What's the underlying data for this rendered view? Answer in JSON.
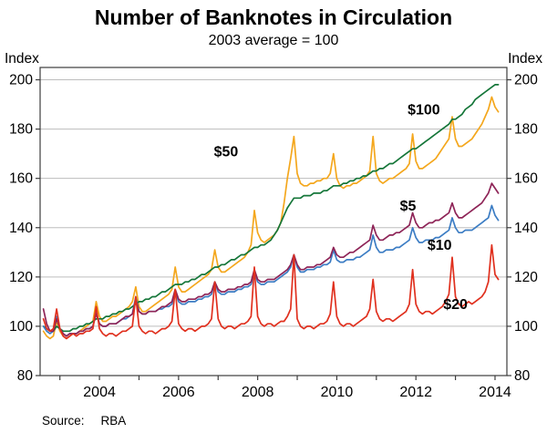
{
  "chart_data": {
    "type": "line",
    "title": "Number of Banknotes in Circulation",
    "subtitle": "2003 average = 100",
    "ylabel_left": "Index",
    "ylabel_right": "Index",
    "source_label": "Source:",
    "source_value": "RBA",
    "xlim": [
      2002.5,
      2014.3
    ],
    "ylim": [
      80,
      205
    ],
    "yticks": [
      80,
      100,
      120,
      140,
      160,
      180,
      200
    ],
    "grid_values": [
      100,
      120,
      140,
      160,
      180,
      200
    ],
    "xticks": [
      2003,
      2004,
      2005,
      2006,
      2007,
      2008,
      2009,
      2010,
      2011,
      2012,
      2013,
      2014
    ],
    "xticks_labeled": [
      2004,
      2006,
      2008,
      2010,
      2012,
      2014
    ],
    "x_start": 2002.5833,
    "x_step": 0.0833333,
    "series": [
      {
        "name": "$50",
        "color": "#f4a71d",
        "label_x": 2007.2,
        "label_y": 169,
        "values": [
          98,
          96,
          95,
          96,
          102,
          98,
          96,
          95,
          96,
          97,
          97,
          98,
          99,
          100,
          101,
          102,
          110,
          104,
          102,
          102,
          103,
          104,
          104,
          105,
          106,
          107,
          108,
          110,
          116,
          108,
          106,
          106,
          107,
          108,
          109,
          110,
          111,
          112,
          113,
          115,
          124,
          116,
          114,
          114,
          115,
          116,
          117,
          118,
          119,
          120,
          121,
          123,
          131,
          124,
          122,
          122,
          123,
          124,
          125,
          126,
          127,
          128,
          130,
          133,
          147,
          138,
          135,
          134,
          135,
          136,
          137,
          139,
          142,
          150,
          160,
          168,
          177,
          162,
          158,
          157,
          157,
          158,
          158,
          159,
          159,
          160,
          160,
          162,
          170,
          160,
          157,
          156,
          157,
          157,
          158,
          158,
          159,
          160,
          161,
          163,
          177,
          162,
          159,
          158,
          159,
          160,
          160,
          161,
          162,
          163,
          164,
          166,
          178,
          167,
          164,
          164,
          165,
          166,
          167,
          168,
          170,
          172,
          174,
          176,
          185,
          176,
          173,
          173,
          174,
          175,
          176,
          178,
          180,
          182,
          185,
          188,
          193,
          189,
          187
        ]
      },
      {
        "name": "$100",
        "color": "#157639",
        "label_x": 2012.2,
        "label_y": 186,
        "values": [
          100,
          99,
          98,
          98,
          100,
          99,
          98,
          98,
          98,
          99,
          99,
          100,
          100,
          101,
          101,
          102,
          103,
          103,
          103,
          104,
          104,
          105,
          105,
          106,
          106,
          107,
          107,
          108,
          109,
          110,
          110,
          111,
          111,
          112,
          112,
          113,
          114,
          114,
          115,
          116,
          117,
          117,
          117,
          118,
          118,
          119,
          119,
          120,
          121,
          121,
          122,
          123,
          124,
          124,
          125,
          125,
          126,
          127,
          127,
          128,
          129,
          129,
          130,
          131,
          132,
          132,
          133,
          133,
          134,
          135,
          137,
          139,
          142,
          145,
          148,
          150,
          152,
          152,
          152,
          153,
          153,
          153,
          154,
          154,
          154,
          155,
          155,
          156,
          157,
          157,
          157,
          158,
          158,
          159,
          159,
          160,
          160,
          161,
          161,
          162,
          163,
          163,
          164,
          164,
          165,
          166,
          166,
          167,
          168,
          169,
          170,
          171,
          172,
          172,
          173,
          174,
          175,
          176,
          177,
          178,
          179,
          180,
          181,
          182,
          184,
          184,
          185,
          186,
          188,
          189,
          190,
          192,
          193,
          194,
          195,
          196,
          197,
          198,
          198
        ]
      },
      {
        "name": "$10",
        "color": "#3c7dc4",
        "label_x": 2012.6,
        "label_y": 131,
        "values": [
          100,
          98,
          97,
          98,
          104,
          99,
          97,
          96,
          97,
          97,
          97,
          98,
          98,
          99,
          99,
          100,
          106,
          101,
          100,
          100,
          101,
          101,
          101,
          102,
          103,
          103,
          104,
          105,
          112,
          106,
          105,
          105,
          106,
          106,
          106,
          107,
          107,
          108,
          108,
          109,
          114,
          110,
          109,
          109,
          110,
          110,
          110,
          111,
          111,
          112,
          112,
          113,
          118,
          114,
          113,
          113,
          114,
          114,
          114,
          115,
          115,
          116,
          116,
          117,
          122,
          118,
          117,
          117,
          118,
          118,
          118,
          119,
          120,
          121,
          122,
          124,
          129,
          124,
          122,
          122,
          123,
          123,
          123,
          124,
          124,
          125,
          125,
          126,
          131,
          127,
          126,
          126,
          127,
          127,
          127,
          128,
          128,
          129,
          130,
          131,
          137,
          132,
          130,
          130,
          131,
          131,
          131,
          132,
          132,
          133,
          134,
          135,
          140,
          136,
          134,
          134,
          135,
          135,
          135,
          136,
          136,
          137,
          138,
          139,
          144,
          140,
          138,
          138,
          139,
          139,
          139,
          140,
          141,
          142,
          143,
          144,
          149,
          145,
          143
        ]
      },
      {
        "name": "$5",
        "color": "#8e2457",
        "label_x": 2011.8,
        "label_y": 147,
        "values": [
          107,
          101,
          98,
          98,
          103,
          99,
          97,
          96,
          97,
          97,
          97,
          98,
          98,
          99,
          99,
          100,
          105,
          101,
          100,
          100,
          101,
          101,
          101,
          102,
          103,
          104,
          104,
          105,
          111,
          106,
          105,
          105,
          106,
          106,
          106,
          107,
          108,
          108,
          109,
          110,
          115,
          111,
          110,
          110,
          111,
          111,
          111,
          112,
          112,
          113,
          113,
          114,
          118,
          115,
          114,
          114,
          115,
          115,
          115,
          116,
          116,
          117,
          117,
          118,
          123,
          119,
          118,
          118,
          119,
          119,
          119,
          120,
          121,
          122,
          123,
          125,
          129,
          125,
          123,
          123,
          124,
          124,
          124,
          125,
          125,
          126,
          127,
          128,
          132,
          129,
          128,
          128,
          129,
          130,
          130,
          131,
          132,
          133,
          134,
          135,
          141,
          137,
          135,
          135,
          136,
          137,
          137,
          138,
          138,
          139,
          140,
          141,
          146,
          142,
          140,
          140,
          141,
          142,
          142,
          143,
          143,
          144,
          145,
          146,
          150,
          146,
          144,
          144,
          145,
          146,
          147,
          148,
          149,
          150,
          152,
          154,
          158,
          156,
          154
        ]
      },
      {
        "name": "$20",
        "color": "#e0301e",
        "label_x": 2013.0,
        "label_y": 107,
        "values": [
          103,
          99,
          98,
          99,
          107,
          99,
          96,
          95,
          96,
          97,
          96,
          97,
          97,
          98,
          98,
          99,
          108,
          99,
          97,
          96,
          97,
          97,
          96,
          97,
          98,
          98,
          99,
          100,
          112,
          100,
          98,
          97,
          98,
          98,
          97,
          98,
          99,
          99,
          100,
          102,
          115,
          101,
          99,
          98,
          99,
          99,
          98,
          99,
          100,
          100,
          101,
          103,
          118,
          103,
          100,
          99,
          100,
          100,
          99,
          100,
          101,
          101,
          102,
          104,
          124,
          104,
          101,
          100,
          101,
          101,
          100,
          101,
          102,
          102,
          104,
          107,
          129,
          103,
          100,
          99,
          100,
          100,
          99,
          100,
          101,
          101,
          102,
          105,
          118,
          104,
          101,
          100,
          101,
          101,
          100,
          101,
          102,
          103,
          104,
          107,
          119,
          106,
          103,
          102,
          103,
          103,
          102,
          103,
          104,
          105,
          106,
          109,
          123,
          109,
          106,
          105,
          106,
          106,
          105,
          106,
          107,
          108,
          110,
          113,
          128,
          112,
          109,
          108,
          109,
          110,
          109,
          110,
          111,
          112,
          114,
          118,
          133,
          121,
          119
        ]
      }
    ]
  }
}
